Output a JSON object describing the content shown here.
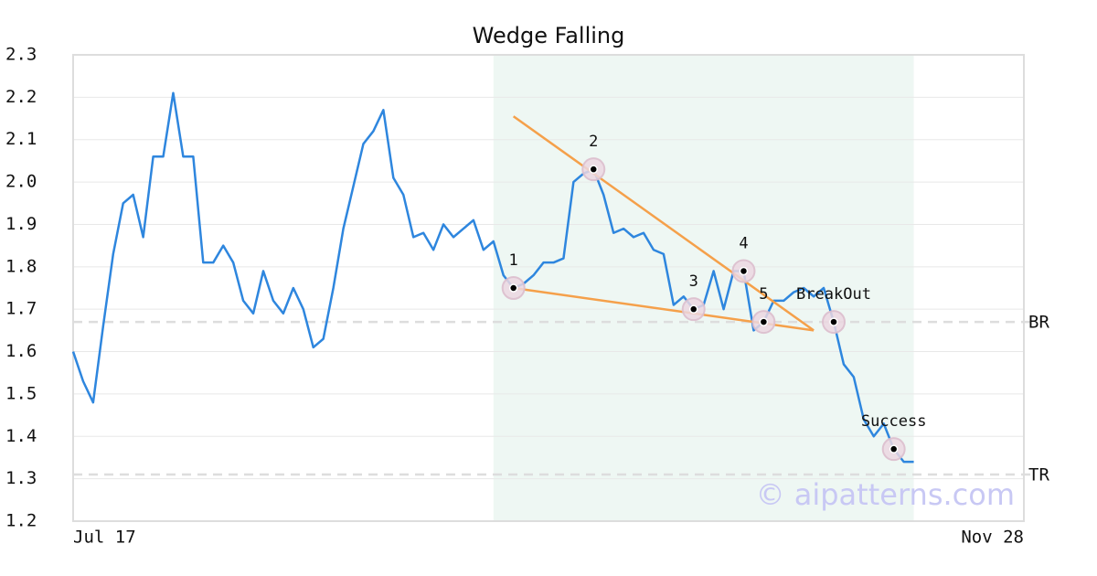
{
  "chart_data": {
    "type": "line",
    "title": "Wedge Falling",
    "watermark": "© aipatterns.com",
    "color": "#2e86de",
    "categories": [
      "Jul 17",
      null,
      null,
      null,
      null,
      null,
      null,
      null,
      null,
      null,
      null,
      null,
      null,
      null,
      null,
      null,
      null,
      null,
      null,
      null,
      null,
      null,
      null,
      null,
      null,
      null,
      null,
      null,
      null,
      null,
      null,
      null,
      null,
      null,
      null,
      null,
      null,
      null,
      null,
      null,
      null,
      null,
      null,
      null,
      null,
      null,
      null,
      null,
      null,
      null,
      null,
      null,
      null,
      null,
      null,
      null,
      null,
      null,
      null,
      null,
      null,
      null,
      null,
      null,
      null,
      null,
      null,
      null,
      null,
      null,
      null,
      null,
      null,
      null,
      null,
      null,
      null,
      null,
      null,
      null,
      null,
      null,
      null,
      null,
      null,
      null,
      null,
      null,
      null,
      null,
      null,
      null,
      null,
      null,
      null,
      "Nov 28"
    ],
    "values": [
      1.6,
      1.53,
      1.48,
      1.66,
      1.83,
      1.95,
      1.97,
      1.87,
      2.06,
      2.06,
      2.21,
      2.06,
      2.06,
      1.81,
      1.81,
      1.85,
      1.81,
      1.72,
      1.69,
      1.79,
      1.72,
      1.69,
      1.75,
      1.7,
      1.61,
      1.63,
      1.75,
      1.89,
      1.99,
      2.09,
      2.12,
      2.17,
      2.01,
      1.97,
      1.87,
      1.88,
      1.84,
      1.9,
      1.87,
      1.89,
      1.91,
      1.84,
      1.86,
      1.78,
      1.75,
      1.76,
      1.78,
      1.81,
      1.81,
      1.82,
      2.0,
      2.02,
      2.03,
      1.97,
      1.88,
      1.89,
      1.87,
      1.88,
      1.84,
      1.83,
      1.71,
      1.73,
      1.7,
      1.71,
      1.79,
      1.7,
      1.79,
      1.79,
      1.65,
      1.67,
      1.72,
      1.72,
      1.74,
      1.75,
      1.73,
      1.75,
      1.67,
      1.57,
      1.54,
      1.44,
      1.4,
      1.43,
      1.37,
      1.34,
      1.34,
      null,
      null,
      null,
      null,
      null,
      null,
      null,
      null,
      null,
      null,
      null
    ],
    "ylim": [
      1.2,
      2.3
    ],
    "yticks": [
      1.2,
      1.3,
      1.4,
      1.5,
      1.6,
      1.7,
      1.8,
      1.9,
      {
        "value": 2.0,
        "label": "2.0"
      },
      2.1,
      2.2,
      2.3
    ],
    "grid": true,
    "shaded_range": [
      42,
      84
    ],
    "shade_color": "#eef7f3",
    "trendlines": [
      {
        "x": [
          44,
          74
        ],
        "values": [
          2.155,
          1.65
        ],
        "color": "#f5a04a"
      },
      {
        "x": [
          44,
          74
        ],
        "values": [
          1.75,
          1.65
        ],
        "color": "#f5a04a"
      }
    ],
    "levels": [
      {
        "label": "BR",
        "value": 1.67
      },
      {
        "label": "TR",
        "value": 1.31
      }
    ],
    "points": [
      {
        "label": "1",
        "x": 44,
        "value": 1.75
      },
      {
        "label": "2",
        "x": 52,
        "value": 2.03
      },
      {
        "label": "3",
        "x": 62,
        "value": 1.7
      },
      {
        "label": "4",
        "x": 67,
        "value": 1.79
      },
      {
        "label": "5",
        "x": 69,
        "value": 1.67
      },
      {
        "label": "BreakOut",
        "x": 76,
        "value": 1.67
      },
      {
        "label": "Success",
        "x": 82,
        "value": 1.37
      }
    ]
  }
}
